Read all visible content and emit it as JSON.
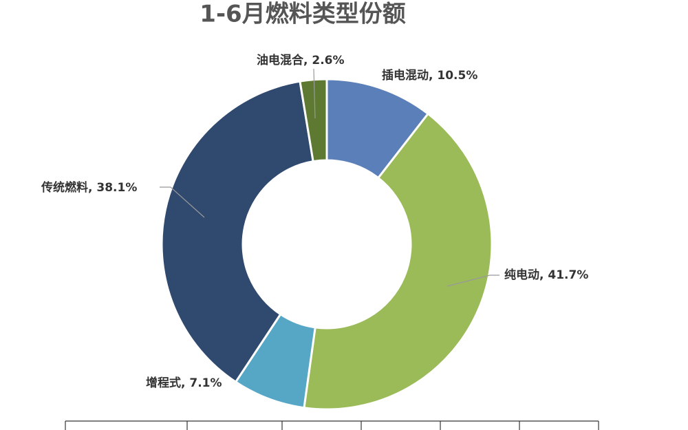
{
  "chart_data": {
    "type": "donut",
    "title": "1-6月燃料类型份额",
    "values": [
      10.5,
      41.7,
      7.1,
      38.1,
      2.6
    ],
    "value_labels": [
      "插电混动, 10.5%",
      "纯电动, 41.7%",
      "增程式, 7.1%",
      "传统燃料, 38.1%",
      "油电混合, 2.6%"
    ],
    "colors": [
      "#5b7fb8",
      "#9bbb59",
      "#56a6c6",
      "#30496f",
      "#5e7a32"
    ]
  }
}
